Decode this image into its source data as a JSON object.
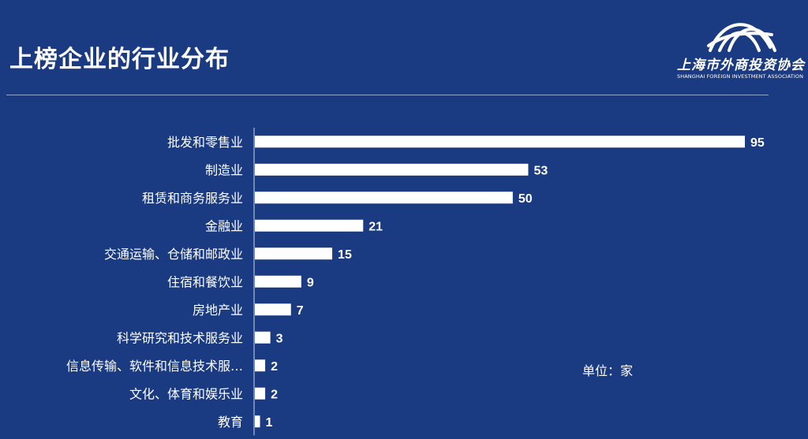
{
  "header": {
    "title": "上榜企业的行业分布"
  },
  "logo": {
    "name_cn": "上海市外商投资协会",
    "name_en": "SHANGHAI FOREIGN INVESTMENT ASSOCIATION"
  },
  "unit_note": "单位：家",
  "colors": {
    "background": "#1a3a82",
    "bar": "#ffffff",
    "text": "#ffffff"
  },
  "chart_data": {
    "type": "bar",
    "orientation": "horizontal",
    "categories": [
      "批发和零售业",
      "制造业",
      "租赁和商务服务业",
      "金融业",
      "交通运输、仓储和邮政业",
      "住宿和餐饮业",
      "房地产业",
      "科学研究和技术服务业",
      "信息传输、软件和信息技术服…",
      "文化、体育和娱乐业",
      "教育"
    ],
    "values": [
      95,
      53,
      50,
      21,
      15,
      9,
      7,
      3,
      2,
      2,
      1
    ],
    "title": "",
    "xlabel": "",
    "ylabel": "",
    "grid": false,
    "data_labels": true
  }
}
